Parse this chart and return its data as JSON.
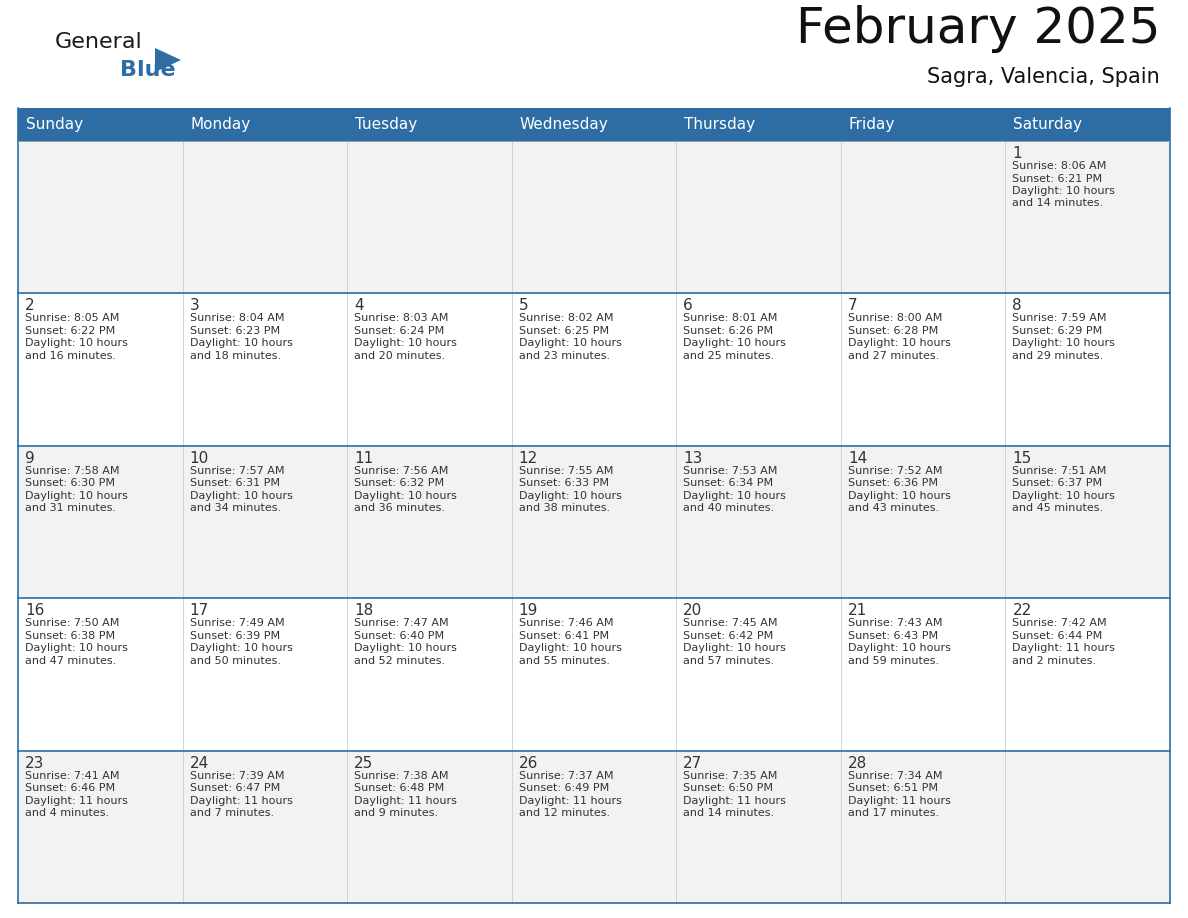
{
  "title": "February 2025",
  "subtitle": "Sagra, Valencia, Spain",
  "header_color": "#2E6DA4",
  "header_text_color": "#FFFFFF",
  "row_bg_even": "#F2F2F2",
  "row_bg_odd": "#FFFFFF",
  "border_color": "#2E6DA4",
  "text_color": "#333333",
  "divider_color": "#CCCCCC",
  "day_headers": [
    "Sunday",
    "Monday",
    "Tuesday",
    "Wednesday",
    "Thursday",
    "Friday",
    "Saturday"
  ],
  "logo_general_color": "#1a1a1a",
  "logo_blue_color": "#2E6DA4",
  "calendar_data": [
    [
      {
        "day": "",
        "info": ""
      },
      {
        "day": "",
        "info": ""
      },
      {
        "day": "",
        "info": ""
      },
      {
        "day": "",
        "info": ""
      },
      {
        "day": "",
        "info": ""
      },
      {
        "day": "",
        "info": ""
      },
      {
        "day": "1",
        "info": "Sunrise: 8:06 AM\nSunset: 6:21 PM\nDaylight: 10 hours\nand 14 minutes."
      }
    ],
    [
      {
        "day": "2",
        "info": "Sunrise: 8:05 AM\nSunset: 6:22 PM\nDaylight: 10 hours\nand 16 minutes."
      },
      {
        "day": "3",
        "info": "Sunrise: 8:04 AM\nSunset: 6:23 PM\nDaylight: 10 hours\nand 18 minutes."
      },
      {
        "day": "4",
        "info": "Sunrise: 8:03 AM\nSunset: 6:24 PM\nDaylight: 10 hours\nand 20 minutes."
      },
      {
        "day": "5",
        "info": "Sunrise: 8:02 AM\nSunset: 6:25 PM\nDaylight: 10 hours\nand 23 minutes."
      },
      {
        "day": "6",
        "info": "Sunrise: 8:01 AM\nSunset: 6:26 PM\nDaylight: 10 hours\nand 25 minutes."
      },
      {
        "day": "7",
        "info": "Sunrise: 8:00 AM\nSunset: 6:28 PM\nDaylight: 10 hours\nand 27 minutes."
      },
      {
        "day": "8",
        "info": "Sunrise: 7:59 AM\nSunset: 6:29 PM\nDaylight: 10 hours\nand 29 minutes."
      }
    ],
    [
      {
        "day": "9",
        "info": "Sunrise: 7:58 AM\nSunset: 6:30 PM\nDaylight: 10 hours\nand 31 minutes."
      },
      {
        "day": "10",
        "info": "Sunrise: 7:57 AM\nSunset: 6:31 PM\nDaylight: 10 hours\nand 34 minutes."
      },
      {
        "day": "11",
        "info": "Sunrise: 7:56 AM\nSunset: 6:32 PM\nDaylight: 10 hours\nand 36 minutes."
      },
      {
        "day": "12",
        "info": "Sunrise: 7:55 AM\nSunset: 6:33 PM\nDaylight: 10 hours\nand 38 minutes."
      },
      {
        "day": "13",
        "info": "Sunrise: 7:53 AM\nSunset: 6:34 PM\nDaylight: 10 hours\nand 40 minutes."
      },
      {
        "day": "14",
        "info": "Sunrise: 7:52 AM\nSunset: 6:36 PM\nDaylight: 10 hours\nand 43 minutes."
      },
      {
        "day": "15",
        "info": "Sunrise: 7:51 AM\nSunset: 6:37 PM\nDaylight: 10 hours\nand 45 minutes."
      }
    ],
    [
      {
        "day": "16",
        "info": "Sunrise: 7:50 AM\nSunset: 6:38 PM\nDaylight: 10 hours\nand 47 minutes."
      },
      {
        "day": "17",
        "info": "Sunrise: 7:49 AM\nSunset: 6:39 PM\nDaylight: 10 hours\nand 50 minutes."
      },
      {
        "day": "18",
        "info": "Sunrise: 7:47 AM\nSunset: 6:40 PM\nDaylight: 10 hours\nand 52 minutes."
      },
      {
        "day": "19",
        "info": "Sunrise: 7:46 AM\nSunset: 6:41 PM\nDaylight: 10 hours\nand 55 minutes."
      },
      {
        "day": "20",
        "info": "Sunrise: 7:45 AM\nSunset: 6:42 PM\nDaylight: 10 hours\nand 57 minutes."
      },
      {
        "day": "21",
        "info": "Sunrise: 7:43 AM\nSunset: 6:43 PM\nDaylight: 10 hours\nand 59 minutes."
      },
      {
        "day": "22",
        "info": "Sunrise: 7:42 AM\nSunset: 6:44 PM\nDaylight: 11 hours\nand 2 minutes."
      }
    ],
    [
      {
        "day": "23",
        "info": "Sunrise: 7:41 AM\nSunset: 6:46 PM\nDaylight: 11 hours\nand 4 minutes."
      },
      {
        "day": "24",
        "info": "Sunrise: 7:39 AM\nSunset: 6:47 PM\nDaylight: 11 hours\nand 7 minutes."
      },
      {
        "day": "25",
        "info": "Sunrise: 7:38 AM\nSunset: 6:48 PM\nDaylight: 11 hours\nand 9 minutes."
      },
      {
        "day": "26",
        "info": "Sunrise: 7:37 AM\nSunset: 6:49 PM\nDaylight: 11 hours\nand 12 minutes."
      },
      {
        "day": "27",
        "info": "Sunrise: 7:35 AM\nSunset: 6:50 PM\nDaylight: 11 hours\nand 14 minutes."
      },
      {
        "day": "28",
        "info": "Sunrise: 7:34 AM\nSunset: 6:51 PM\nDaylight: 11 hours\nand 17 minutes."
      },
      {
        "day": "",
        "info": ""
      }
    ]
  ]
}
